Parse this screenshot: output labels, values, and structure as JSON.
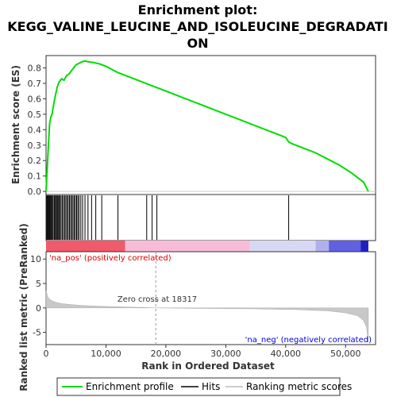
{
  "chart_data": {
    "type": "line",
    "title_line1": "Enrichment plot:",
    "title_line2": "KEGG_VALINE_LEUCINE_AND_ISOLEUCINE_DEGRADATI",
    "title_line3": "ON",
    "top_panel": {
      "ylabel": "Enrichment score (ES)",
      "ylim": [
        -0.02,
        0.88
      ],
      "yticks": [
        0.0,
        0.1,
        0.2,
        0.3,
        0.4,
        0.5,
        0.6,
        0.7,
        0.8
      ],
      "ytick_labels": [
        "0.0",
        "0.1",
        "0.2",
        "0.3",
        "0.4",
        "0.5",
        "0.6",
        "0.7",
        "0.8"
      ],
      "series_color": "#00dd00",
      "es_curve": {
        "x": [
          0,
          200,
          400,
          600,
          800,
          1000,
          1300,
          1600,
          1900,
          2200,
          2600,
          3000,
          3400,
          3800,
          4200,
          4600,
          5000,
          5500,
          6000,
          6500,
          7000,
          8000,
          9000,
          10000,
          11000,
          12000,
          14000,
          16000,
          18000,
          20000,
          22000,
          24000,
          26000,
          28000,
          30000,
          32000,
          34000,
          36000,
          38000,
          40000,
          40500,
          41000,
          43000,
          45000,
          47000,
          49000,
          51000,
          53000,
          53800
        ],
        "y": [
          0.0,
          0.15,
          0.3,
          0.44,
          0.48,
          0.5,
          0.57,
          0.63,
          0.68,
          0.71,
          0.73,
          0.72,
          0.75,
          0.76,
          0.78,
          0.8,
          0.82,
          0.83,
          0.84,
          0.845,
          0.84,
          0.835,
          0.825,
          0.81,
          0.79,
          0.77,
          0.74,
          0.71,
          0.68,
          0.65,
          0.62,
          0.59,
          0.56,
          0.53,
          0.5,
          0.47,
          0.44,
          0.41,
          0.38,
          0.35,
          0.32,
          0.31,
          0.28,
          0.25,
          0.21,
          0.17,
          0.12,
          0.06,
          0.0
        ]
      }
    },
    "hits": [
      120,
      260,
      380,
      520,
      640,
      780,
      900,
      1050,
      1200,
      1400,
      1550,
      1700,
      1850,
      2000,
      2150,
      2300,
      2500,
      2700,
      2900,
      3100,
      3300,
      3500,
      3700,
      3900,
      4100,
      4300,
      4500,
      4700,
      4900,
      5100,
      5300,
      5500,
      5800,
      6100,
      6500,
      7000,
      7600,
      8300,
      9300,
      12000,
      16800,
      17700,
      18500,
      40500
    ],
    "middle_bar": {
      "segments": [
        {
          "from": 0,
          "to": 13200,
          "color": "#f05a6a"
        },
        {
          "from": 13200,
          "to": 34000,
          "color": "#f8bcd8"
        },
        {
          "from": 34000,
          "to": 45000,
          "color": "#d8d8f4"
        },
        {
          "from": 45000,
          "to": 47200,
          "color": "#b0b0ee"
        },
        {
          "from": 47200,
          "to": 52500,
          "color": "#6060e0"
        },
        {
          "from": 52500,
          "to": 53800,
          "color": "#2020c0"
        }
      ]
    },
    "bottom_panel": {
      "ylabel": "Ranked list metric (PreRanked)",
      "ylim": [
        -7.5,
        11.5
      ],
      "yticks": [
        -5,
        0,
        5,
        10
      ],
      "ytick_labels": [
        "-5",
        "0",
        "5",
        "10"
      ],
      "metric_curve": {
        "x": [
          0,
          300,
          800,
          1500,
          2500,
          4000,
          6000,
          9000,
          13000,
          18317,
          25000,
          35000,
          42000,
          47000,
          50000,
          52000,
          53000,
          53500,
          53800
        ],
        "y": [
          3.5,
          2.2,
          1.6,
          1.2,
          0.9,
          0.7,
          0.5,
          0.35,
          0.2,
          0.0,
          -0.1,
          -0.2,
          -0.35,
          -0.6,
          -1.0,
          -1.6,
          -2.6,
          -4.0,
          -7.0
        ]
      },
      "zero_cross_label": "Zero cross at 18317",
      "zero_cross_x": 18317,
      "pos_label": "'na_pos' (positively correlated)",
      "neg_label": "'na_neg' (negatively correlated)",
      "pos_color": "#dd0000",
      "neg_color": "#0000dd"
    },
    "xlabel": "Rank in Ordered Dataset",
    "xlim": [
      0,
      55000
    ],
    "xticks": [
      0,
      10000,
      20000,
      30000,
      40000,
      50000
    ],
    "xtick_labels": [
      "0",
      "10,000",
      "20,000",
      "30,000",
      "40,000",
      "50,000"
    ],
    "legend": {
      "placement": "bottom",
      "items": [
        {
          "label": "Enrichment profile",
          "color": "#00dd00"
        },
        {
          "label": "Hits",
          "color": "#000000"
        },
        {
          "label": "Ranking metric scores",
          "color": "#bbbbbb"
        }
      ]
    }
  }
}
